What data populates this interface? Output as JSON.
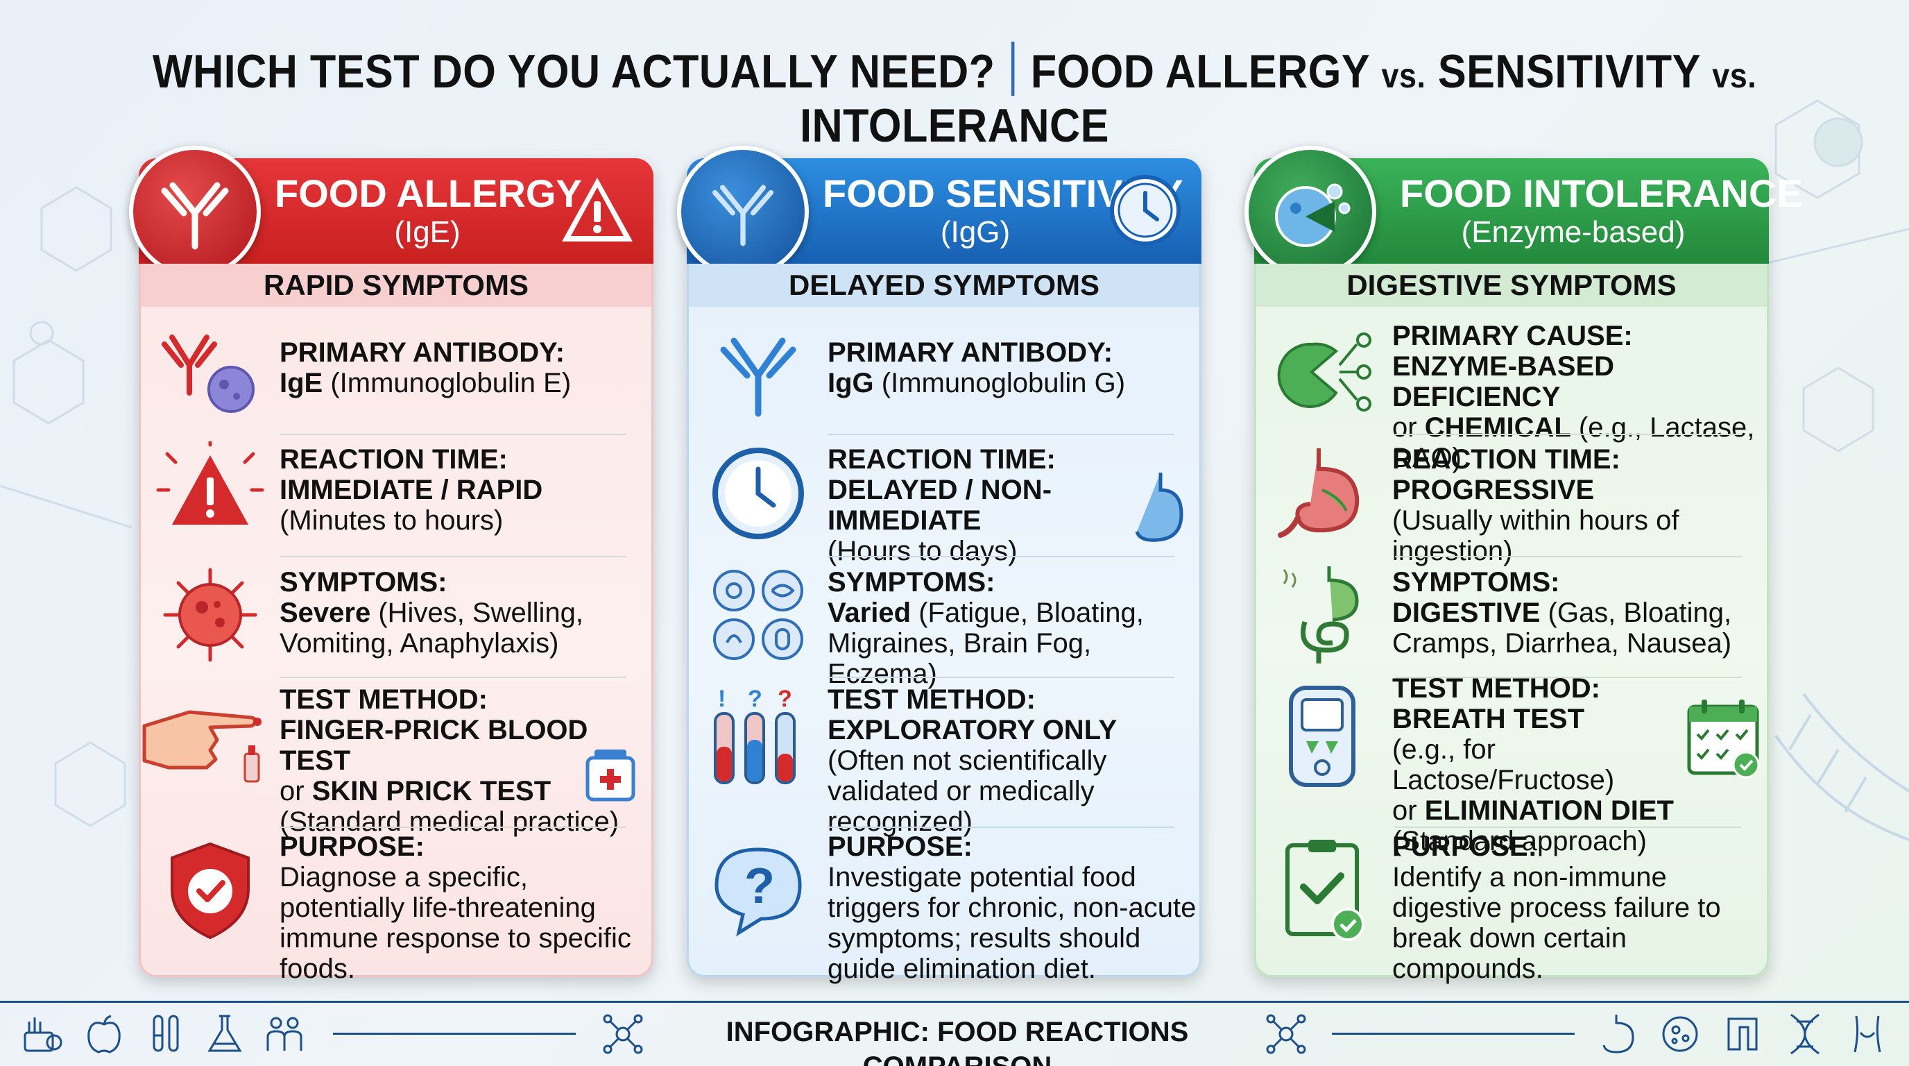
{
  "title": {
    "part1": "WHICH TEST DO YOU ACTUALLY NEED?",
    "part2a": "FOOD ALLERGY",
    "vs1": "vs.",
    "part2b": "SENSITIVITY",
    "vs2": "vs.",
    "part2c": "INTOLERANCE"
  },
  "colors": {
    "red": "#d42a2c",
    "blue": "#1f73c8",
    "green": "#2f9e4a",
    "navy": "#1d4f8a"
  },
  "cards": {
    "allergy": {
      "title": "FOOD ALLERGY",
      "subtitle": "(IgE)",
      "band": "RAPID SYMPTOMS",
      "rows": [
        {
          "label": "PRIMARY ANTIBODY:",
          "bold": "IgE",
          "rest": " (Immunoglobulin E)",
          "icon": "antibody-cell-icon"
        },
        {
          "label": "REACTION TIME:",
          "bold": "IMMEDIATE / RAPID",
          "rest": "(Minutes to hours)",
          "icon": "warning-icon"
        },
        {
          "label": "SYMPTOMS:",
          "bold": "Severe",
          "rest": " (Hives, Swelling, Vomiting, Anaphylaxis)",
          "icon": "virus-icon"
        },
        {
          "label": "TEST METHOD:",
          "bold": "FINGER-PRICK BLOOD TEST",
          "or": "or ",
          "bold2": "SKIN PRICK TEST",
          "rest": "(Standard medical practice)",
          "icon": "finger-prick-icon"
        },
        {
          "label": "PURPOSE:",
          "rest": "Diagnose a specific, potentially life-threatening immune response to specific foods.",
          "icon": "shield-check-icon"
        }
      ]
    },
    "sensitivity": {
      "title": "FOOD SENSITIVITY",
      "subtitle": "(IgG)",
      "band": "DELAYED SYMPTOMS",
      "rows": [
        {
          "label": "PRIMARY ANTIBODY:",
          "bold": "IgG",
          "rest": " (Immunoglobulin G)",
          "icon": "antibody-icon"
        },
        {
          "label": "REACTION TIME:",
          "bold": "DELAYED / NON-IMMEDIATE",
          "rest": "(Hours to days)",
          "icon": "clock-icon"
        },
        {
          "label": "SYMPTOMS:",
          "bold": "Varied",
          "rest": " (Fatigue, Bloating, Migraines, Brain Fog, Eczema)",
          "icon": "symptom-grid-icon"
        },
        {
          "label": "TEST METHOD:",
          "bold": "EXPLORATORY ONLY",
          "rest": "(Often not scientifically validated or medically recognized)",
          "icon": "test-tubes-icon"
        },
        {
          "label": "PURPOSE:",
          "rest": "Investigate potential food triggers for chronic, non-acute symptoms; results should guide elimination diet.",
          "icon": "question-bubble-icon"
        }
      ]
    },
    "intolerance": {
      "title": "FOOD INTOLERANCE",
      "subtitle": "(Enzyme-based)",
      "band": "DIGESTIVE SYMPTOMS",
      "rows": [
        {
          "label": "PRIMARY CAUSE:",
          "bold": "ENZYME-BASED DEFICIENCY",
          "or": "or ",
          "bold2": "CHEMICAL",
          "rest": " (e.g., Lactase, DAO)",
          "icon": "enzyme-icon"
        },
        {
          "label": "REACTION TIME:",
          "bold": "PROGRESSIVE",
          "rest": "(Usually within hours of ingestion)",
          "icon": "stomach-icon"
        },
        {
          "label": "SYMPTOMS:",
          "bold": "DIGESTIVE",
          "rest": " (Gas, Bloating, Cramps, Diarrhea, Nausea)",
          "icon": "digestive-tract-icon"
        },
        {
          "label": "TEST METHOD:",
          "bold": "BREATH TEST",
          "rest": "(e.g., for Lactose/Fructose)",
          "or": "or ",
          "bold2": "ELIMINATION DIET",
          "rest2": "(Standard approach)",
          "icon": "breath-tester-icon"
        },
        {
          "label": "PURPOSE:",
          "rest": "Identify a non-immune digestive process failure to break down certain compounds.",
          "icon": "clipboard-check-icon"
        }
      ]
    }
  },
  "footer": {
    "text": "INFOGRAPHIC: FOOD REACTIONS COMPARISON"
  }
}
